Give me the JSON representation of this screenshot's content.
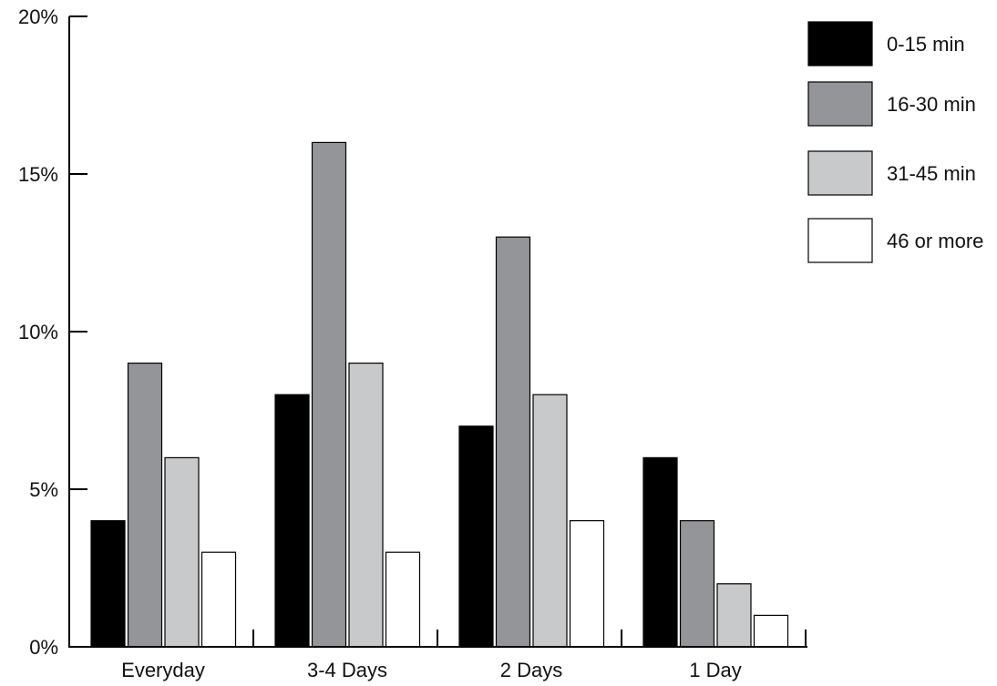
{
  "chart_data": {
    "type": "bar",
    "categories": [
      "Everyday",
      "3-4 Days",
      "2 Days",
      "1 Day"
    ],
    "series": [
      {
        "name": "0-15 min",
        "color": "#000000",
        "values": [
          4,
          8,
          7,
          6
        ]
      },
      {
        "name": "16-30 min",
        "color": "#939598",
        "values": [
          9,
          16,
          13,
          4
        ]
      },
      {
        "name": "31-45 min",
        "color": "#c8c9cb",
        "values": [
          6,
          9,
          8,
          2
        ]
      },
      {
        "name": "46 or more",
        "color": "#ffffff",
        "values": [
          3,
          3,
          4,
          1
        ]
      }
    ],
    "yticks": [
      {
        "value": 0,
        "label": "0%"
      },
      {
        "value": 5,
        "label": "5%"
      },
      {
        "value": 10,
        "label": "10%"
      },
      {
        "value": 15,
        "label": "15%"
      },
      {
        "value": 20,
        "label": "20%"
      }
    ],
    "ylim": [
      0,
      20
    ],
    "title": "",
    "xlabel": "",
    "ylabel": "",
    "grid": false,
    "legend_position": "top-right"
  }
}
